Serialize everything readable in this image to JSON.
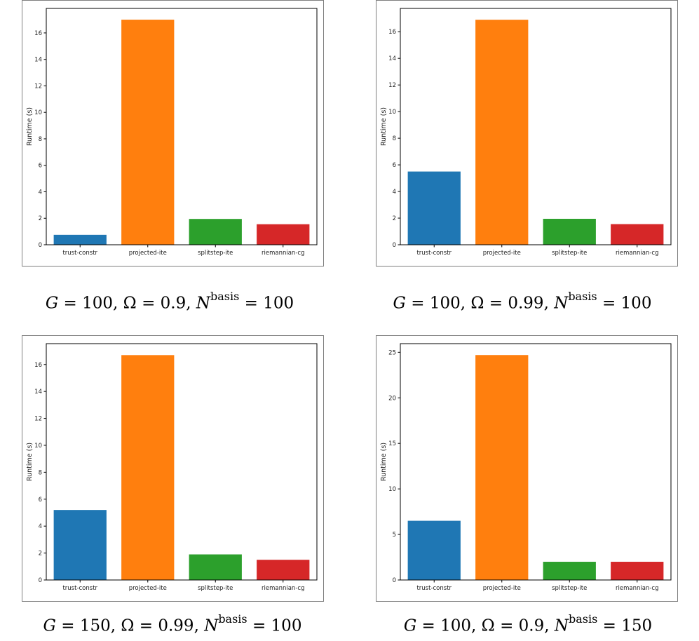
{
  "chart_data": [
    {
      "type": "bar",
      "categories": [
        "trust-constr",
        "projected-ite",
        "splitstep-ite",
        "riemannian-cg"
      ],
      "values": [
        0.75,
        17.0,
        1.95,
        1.55
      ],
      "colors": [
        "#1f77b4",
        "#ff7f0e",
        "#2ca02c",
        "#d62728"
      ],
      "ylabel": "Runtime (s)",
      "ylim": [
        0,
        17.85
      ],
      "yticks": [
        0,
        2,
        4,
        6,
        8,
        10,
        12,
        14,
        16
      ],
      "caption": {
        "G": "100",
        "omega": "0.9",
        "nbasis": "100"
      }
    },
    {
      "type": "bar",
      "categories": [
        "trust-constr",
        "projected-ite",
        "splitstep-ite",
        "riemannian-cg"
      ],
      "values": [
        5.5,
        16.9,
        1.95,
        1.55
      ],
      "colors": [
        "#1f77b4",
        "#ff7f0e",
        "#2ca02c",
        "#d62728"
      ],
      "ylabel": "Runtime (s)",
      "ylim": [
        0,
        17.75
      ],
      "yticks": [
        0,
        2,
        4,
        6,
        8,
        10,
        12,
        14,
        16
      ],
      "caption": {
        "G": "100",
        "omega": "0.99",
        "nbasis": "100"
      }
    },
    {
      "type": "bar",
      "categories": [
        "trust-constr",
        "projected-ite",
        "splitstep-ite",
        "riemannian-cg"
      ],
      "values": [
        5.2,
        16.7,
        1.9,
        1.5
      ],
      "colors": [
        "#1f77b4",
        "#ff7f0e",
        "#2ca02c",
        "#d62728"
      ],
      "ylabel": "Runtime (s)",
      "ylim": [
        0,
        17.55
      ],
      "yticks": [
        0,
        2,
        4,
        6,
        8,
        10,
        12,
        14,
        16
      ],
      "caption": {
        "G": "150",
        "omega": "0.99",
        "nbasis": "100"
      }
    },
    {
      "type": "bar",
      "categories": [
        "trust-constr",
        "projected-ite",
        "splitstep-ite",
        "riemannian-cg"
      ],
      "values": [
        6.5,
        24.7,
        2.0,
        2.0
      ],
      "colors": [
        "#1f77b4",
        "#ff7f0e",
        "#2ca02c",
        "#d62728"
      ],
      "ylabel": "Runtime (s)",
      "ylim": [
        0,
        25.95
      ],
      "yticks": [
        0,
        5,
        10,
        15,
        20,
        25
      ],
      "caption": {
        "G": "100",
        "omega": "0.9",
        "nbasis": "150"
      }
    }
  ],
  "symbols": {
    "G": "G",
    "omega": "Ω",
    "N": "N",
    "basis": "basis",
    "eq": "=",
    "sep": ","
  }
}
